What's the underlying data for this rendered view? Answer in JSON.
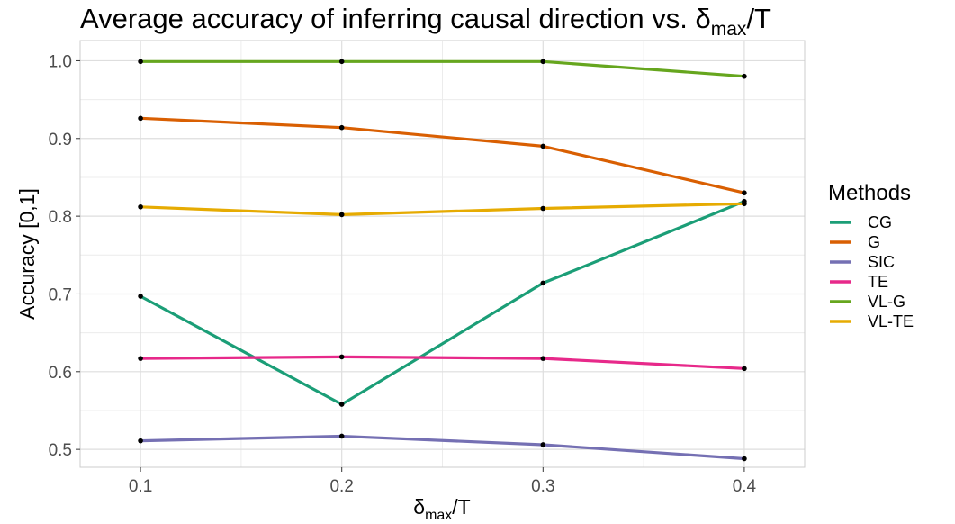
{
  "chart_data": {
    "type": "line",
    "title": "Average accuracy of inferring causal direction vs. δmax/T",
    "title_main": "Average accuracy of inferring causal direction vs. δ",
    "title_sub": "max",
    "title_tail": "/T",
    "xlabel_main": "δ",
    "xlabel_sub": "max",
    "xlabel_tail": "/T",
    "ylabel": "Accuracy [0,1]",
    "x": [
      0.1,
      0.2,
      0.3,
      0.4
    ],
    "x_tick_labels": [
      "0.1",
      "0.2",
      "0.3",
      "0.4"
    ],
    "xlim": [
      0.07,
      0.43
    ],
    "y_ticks": [
      0.5,
      0.6,
      0.7,
      0.8,
      0.9,
      1.0
    ],
    "y_tick_labels": [
      "0.5",
      "0.6",
      "0.7",
      "0.8",
      "0.9",
      "1.0"
    ],
    "ylim": [
      0.477,
      1.026
    ],
    "grid": true,
    "legend_title": "Methods",
    "legend_position": "right",
    "series": [
      {
        "name": "CG",
        "color": "#1b9e77",
        "values": [
          0.697,
          0.558,
          0.714,
          0.819
        ]
      },
      {
        "name": "G",
        "color": "#d95f02",
        "values": [
          0.926,
          0.914,
          0.89,
          0.83
        ]
      },
      {
        "name": "SIC",
        "color": "#7570b3",
        "values": [
          0.511,
          0.517,
          0.506,
          0.488
        ]
      },
      {
        "name": "TE",
        "color": "#e7298a",
        "values": [
          0.617,
          0.619,
          0.617,
          0.604
        ]
      },
      {
        "name": "VL-G",
        "color": "#66a61e",
        "values": [
          0.999,
          0.999,
          0.999,
          0.98
        ]
      },
      {
        "name": "VL-TE",
        "color": "#e6ab02",
        "values": [
          0.812,
          0.802,
          0.81,
          0.816
        ]
      }
    ]
  }
}
